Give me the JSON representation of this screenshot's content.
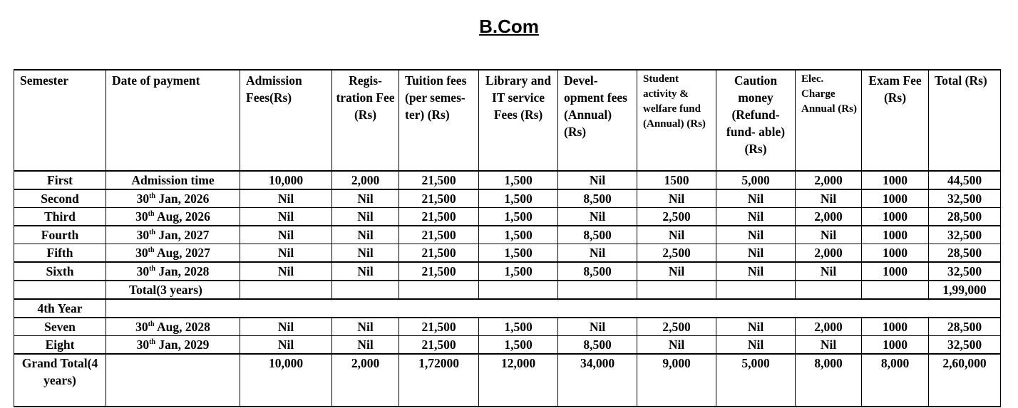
{
  "title": "B.Com",
  "headers": [
    "Semester",
    "Date of payment",
    "Admission Fees(Rs)",
    "Regis- tration Fee (Rs)",
    "Tuition fees (per semes- ter) (Rs)",
    "Library and IT service Fees (Rs)",
    "Devel- opment fees (Annual) (Rs)",
    "Student activity & welfare fund (Annual) (Rs)",
    "Caution money (Refund- fund- able)(Rs)",
    "Elec. Charge Annual (Rs)",
    "Exam Fee (Rs)",
    "Total (Rs)"
  ],
  "rows": [
    {
      "semester": "First",
      "date": {
        "text": "Admission time"
      },
      "values": [
        "10,000",
        "2,000",
        "21,500",
        "1,500",
        "Nil",
        "1500",
        "5,000",
        "2,000",
        "1000",
        "44,500"
      ]
    },
    {
      "semester": "Second",
      "date": {
        "day": "30",
        "suffix": "th",
        "rest": " Jan, 2026"
      },
      "values": [
        "Nil",
        "Nil",
        "21,500",
        "1,500",
        "8,500",
        "Nil",
        "Nil",
        "Nil",
        "1000",
        "32,500"
      ]
    },
    {
      "semester": "Third",
      "date": {
        "day": "30",
        "suffix": "th",
        "rest": " Aug, 2026"
      },
      "values": [
        "Nil",
        "Nil",
        "21,500",
        "1,500",
        "Nil",
        "2,500",
        "Nil",
        "2,000",
        "1000",
        "28,500"
      ]
    },
    {
      "semester": "Fourth",
      "date": {
        "day": "30",
        "suffix": "th",
        "rest": " Jan, 2027"
      },
      "values": [
        "Nil",
        "Nil",
        "21,500",
        "1,500",
        "8,500",
        "Nil",
        "Nil",
        "Nil",
        "1000",
        "32,500"
      ]
    },
    {
      "semester": "Fifth",
      "date": {
        "day": "30",
        "suffix": "th",
        "rest": " Aug, 2027"
      },
      "values": [
        "Nil",
        "Nil",
        "21,500",
        "1,500",
        "Nil",
        "2,500",
        "Nil",
        "2,000",
        "1000",
        "28,500"
      ]
    },
    {
      "semester": "Sixth",
      "date": {
        "day": "30",
        "suffix": "th",
        "rest": " Jan, 2028"
      },
      "values": [
        "Nil",
        "Nil",
        "21,500",
        "1,500",
        "8,500",
        "Nil",
        "Nil",
        "Nil",
        "1000",
        "32,500"
      ]
    }
  ],
  "three_year_total": {
    "label": "Total(3 years)",
    "total": "1,99,000"
  },
  "fourth_year_label": "4th Year",
  "rows_year4": [
    {
      "semester": "Seven",
      "date": {
        "day": "30",
        "suffix": "th",
        "rest": " Aug, 2028"
      },
      "values": [
        "Nil",
        "Nil",
        "21,500",
        "1,500",
        "Nil",
        "2,500",
        "Nil",
        "2,000",
        "1000",
        "28,500"
      ]
    },
    {
      "semester": "Eight",
      "date": {
        "day": "30",
        "suffix": "th",
        "rest": " Jan, 2029"
      },
      "values": [
        "Nil",
        "Nil",
        "21,500",
        "1,500",
        "8,500",
        "Nil",
        "Nil",
        "Nil",
        "1000",
        "32,500"
      ]
    }
  ],
  "grand_total": {
    "label": "Grand Total(4 years)",
    "values": [
      "10,000",
      "2,000",
      "1,72000",
      "12,000",
      "34,000",
      "9,000",
      "5,000",
      "8,000",
      "8,000",
      "2,60,000"
    ]
  }
}
